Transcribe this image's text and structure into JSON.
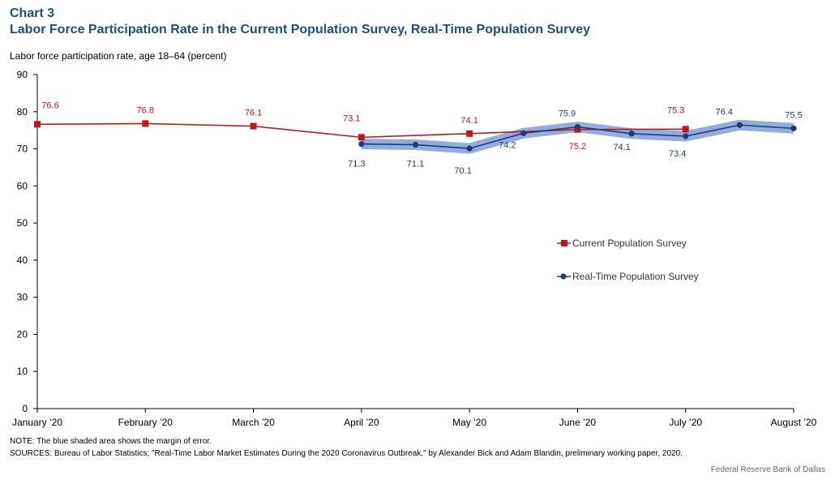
{
  "header": {
    "chart_number": "Chart 3",
    "title": "Labor Force Participation Rate in the Current Population Survey, Real-Time Population Survey",
    "ylabel": "Labor force participation rate, age 18–64 (percent)"
  },
  "footer": {
    "note": "NOTE: The blue shaded area shows the margin of error.",
    "sources": "SOURCES: Bureau of Labor Statistics; \"Real-Time Labor Market Estimates During the 2020 Coronavirus Outbreak,\" by Alexander Bick and Adam Blandin, preliminary working paper, 2020.",
    "credit": "Federal Reserve Bank of Dallas"
  },
  "colors": {
    "cps": "#c0161e",
    "rps": "#1f3b73",
    "band": "#7f9fd8",
    "cps_label": "#c0161e",
    "rps_label": "#1f3b73"
  },
  "chart_data": {
    "type": "line",
    "ylim": [
      0,
      90
    ],
    "yticks": [
      0,
      10,
      20,
      30,
      40,
      50,
      60,
      70,
      80,
      90
    ],
    "x_tick_labels": [
      {
        "label": "January '20",
        "x": 0
      },
      {
        "label": "February '20",
        "x": 1
      },
      {
        "label": "March '20",
        "x": 2
      },
      {
        "label": "April '20",
        "x": 3
      },
      {
        "label": "May '20",
        "x": 4
      },
      {
        "label": "June '20",
        "x": 5
      },
      {
        "label": "July '20",
        "x": 6
      },
      {
        "label": "August '20",
        "x": 7
      }
    ],
    "legend_position": "right",
    "grid": false,
    "band_note": "margin of error around Real-Time Population Survey",
    "series": [
      {
        "name": "Current Population Survey",
        "marker": "square",
        "x": [
          0,
          1,
          2,
          3,
          4,
          5,
          6
        ],
        "values": [
          76.6,
          76.8,
          76.1,
          73.1,
          74.1,
          75.2,
          75.3
        ],
        "labels": [
          "76.6",
          "76.8",
          "76.1",
          "73.1",
          "74.1",
          "75.2",
          "75.3"
        ]
      },
      {
        "name": "Real-Time Population Survey",
        "marker": "circle",
        "x": [
          3,
          3.5,
          4,
          4.5,
          5,
          5.5,
          6,
          6.5,
          7
        ],
        "values": [
          71.3,
          71.1,
          70.1,
          74.2,
          75.9,
          74.1,
          73.4,
          76.4,
          75.5
        ],
        "labels": [
          "71.3",
          "71.1",
          "70.1",
          "74.2",
          "75.9",
          "74.1",
          "73.4",
          "76.4",
          "75.5"
        ]
      }
    ]
  }
}
